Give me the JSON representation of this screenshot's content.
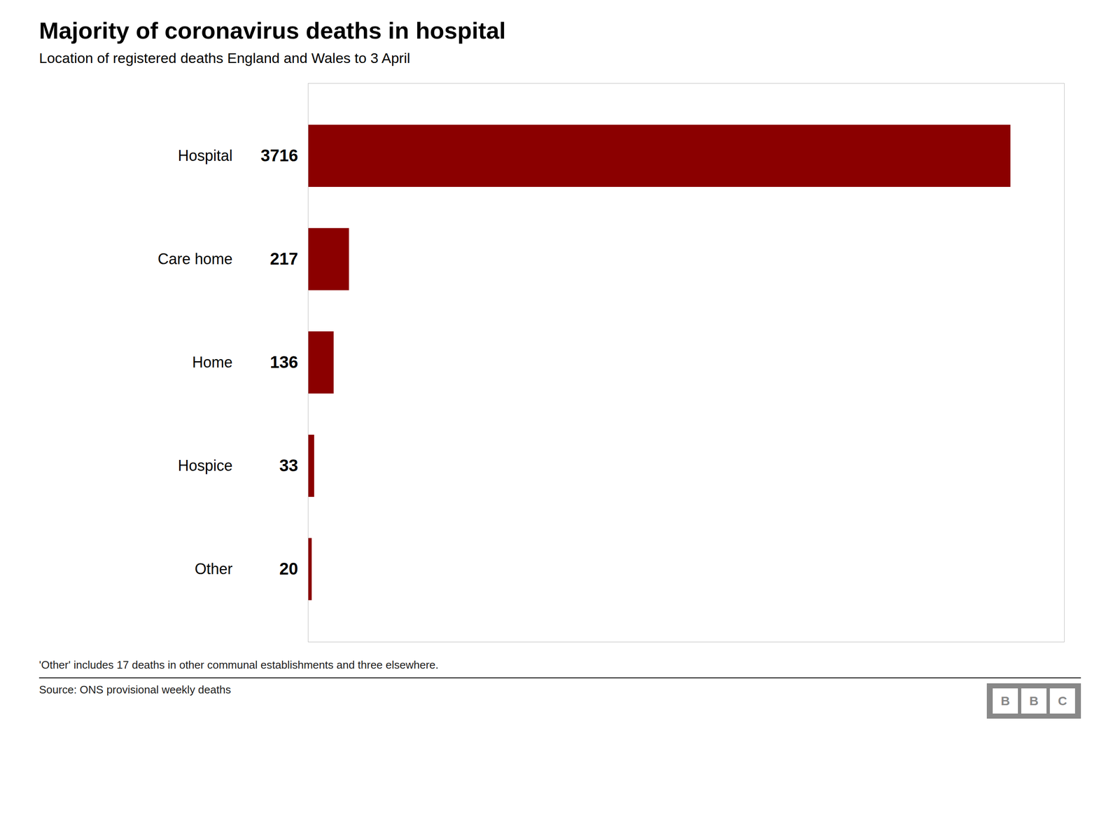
{
  "chart_data": {
    "type": "bar",
    "orientation": "horizontal",
    "title": "Majority of coronavirus deaths in hospital",
    "subtitle": "Location of registered deaths England and Wales to 3 April",
    "categories": [
      "Hospital",
      "Care home",
      "Home",
      "Hospice",
      "Other"
    ],
    "values": [
      3716,
      217,
      136,
      33,
      20
    ],
    "color": "#8B0000",
    "xlim": [
      0,
      4000
    ],
    "xticks": [],
    "data_labels": true,
    "tick_labels": "y",
    "grid": false,
    "footnote": "'Other' includes 17 deaths in other communal establishments and three elsewhere.",
    "source": "Source: ONS provisional weekly deaths",
    "logo": "BBC"
  }
}
